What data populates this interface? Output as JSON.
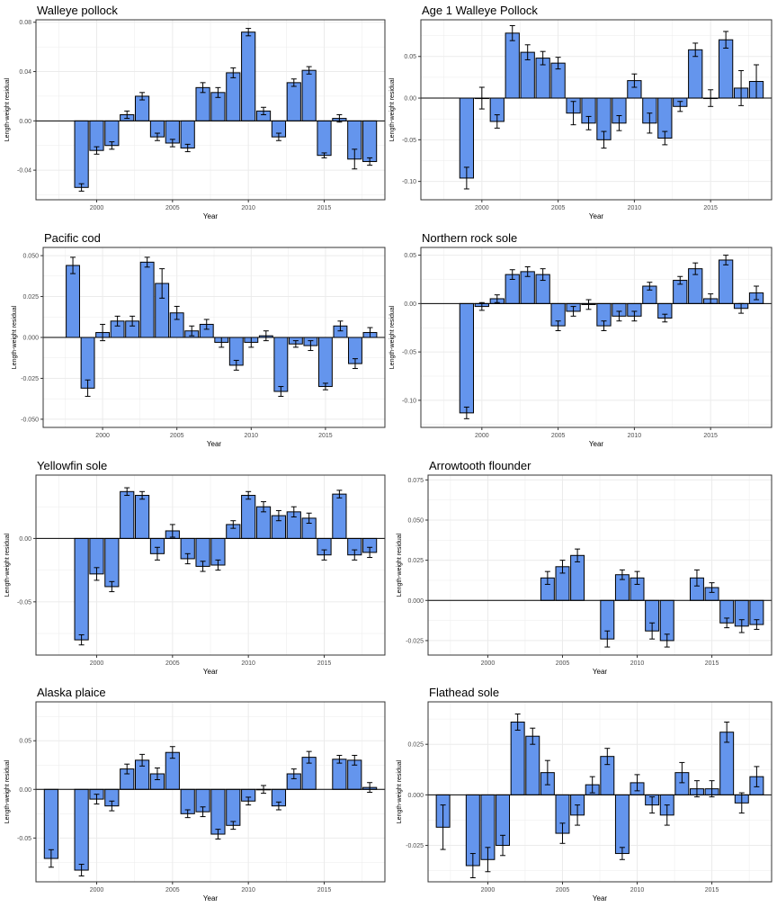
{
  "figure": {
    "ylabel": "Length-weight residual",
    "xlabel": "Year"
  },
  "colors": {
    "bar": "#6495ED",
    "bar_stroke": "#000000",
    "grid": "#EBEBEB",
    "zero_line": "#000000",
    "panel_border": "#333333"
  },
  "chart_data": [
    {
      "type": "bar",
      "title": "Walleye pollock",
      "xlabel": "Year",
      "ylabel": "Length-weight residual",
      "xlim": [
        1996,
        2019
      ],
      "ylim": [
        -0.064,
        0.082
      ],
      "xticks": [
        2000,
        2005,
        2010,
        2015
      ],
      "xtick_labels": [
        "2000",
        "2005",
        "2010",
        "2015"
      ],
      "yticks": [
        -0.04,
        0.0,
        0.04,
        0.08
      ],
      "ytick_labels": [
        "-0.04",
        "0.00",
        "0.04",
        "0.08"
      ],
      "grid": true,
      "x": [
        1999,
        2000,
        2001,
        2002,
        2003,
        2004,
        2005,
        2006,
        2007,
        2008,
        2009,
        2010,
        2011,
        2012,
        2013,
        2014,
        2015,
        2016,
        2017,
        2018
      ],
      "values": [
        -0.054,
        -0.024,
        -0.02,
        0.005,
        0.02,
        -0.013,
        -0.018,
        -0.022,
        0.027,
        0.023,
        0.039,
        0.072,
        0.008,
        -0.013,
        0.031,
        0.041,
        -0.028,
        0.002,
        -0.031,
        -0.033
      ],
      "errors": [
        0.003,
        0.003,
        0.003,
        0.003,
        0.003,
        0.003,
        0.003,
        0.003,
        0.004,
        0.004,
        0.004,
        0.003,
        0.003,
        0.003,
        0.003,
        0.003,
        0.002,
        0.003,
        0.008,
        0.003
      ]
    },
    {
      "type": "bar",
      "title": "Age 1 Walleye Pollock",
      "xlabel": "Year",
      "ylabel": "Length-weight residual",
      "xlim": [
        1996,
        2019
      ],
      "ylim": [
        -0.122,
        0.094
      ],
      "xticks": [
        2000,
        2005,
        2010,
        2015
      ],
      "xtick_labels": [
        "2000",
        "2005",
        "2010",
        "2015"
      ],
      "yticks": [
        -0.1,
        -0.05,
        0.0,
        0.05
      ],
      "ytick_labels": [
        "-0.10",
        "-0.05",
        "0.00",
        "0.05"
      ],
      "grid": true,
      "x": [
        1999,
        2000,
        2001,
        2002,
        2003,
        2004,
        2005,
        2006,
        2007,
        2008,
        2009,
        2010,
        2011,
        2012,
        2013,
        2014,
        2015,
        2016,
        2017,
        2018
      ],
      "values": [
        -0.096,
        0.0,
        -0.028,
        0.078,
        0.055,
        0.048,
        0.042,
        -0.018,
        -0.03,
        -0.05,
        -0.03,
        0.021,
        -0.03,
        -0.048,
        -0.01,
        0.058,
        0.0,
        0.07,
        0.012,
        0.02
      ],
      "errors": [
        0.013,
        0.013,
        0.008,
        0.009,
        0.009,
        0.008,
        0.007,
        0.014,
        0.008,
        0.01,
        0.009,
        0.008,
        0.012,
        0.008,
        0.006,
        0.008,
        0.01,
        0.01,
        0.021,
        0.02
      ]
    },
    {
      "type": "bar",
      "title": "Pacific cod",
      "xlabel": "Year",
      "ylabel": "Length-weight residual",
      "xlim": [
        1996,
        2019
      ],
      "ylim": [
        -0.055,
        0.055
      ],
      "xticks": [
        2000,
        2005,
        2010,
        2015
      ],
      "xtick_labels": [
        "2000",
        "2005",
        "2010",
        "2015"
      ],
      "yticks": [
        -0.05,
        -0.025,
        0.0,
        0.025,
        0.05
      ],
      "ytick_labels": [
        "-0.050",
        "-0.025",
        "0.000",
        "0.025",
        "0.050"
      ],
      "grid": true,
      "x": [
        1998,
        1999,
        2000,
        2001,
        2002,
        2003,
        2004,
        2005,
        2006,
        2007,
        2008,
        2009,
        2010,
        2011,
        2012,
        2013,
        2014,
        2015,
        2016,
        2017,
        2018
      ],
      "values": [
        0.044,
        -0.031,
        0.003,
        0.01,
        0.01,
        0.046,
        0.033,
        0.015,
        0.004,
        0.008,
        -0.003,
        -0.017,
        -0.003,
        0.001,
        -0.033,
        -0.004,
        -0.005,
        -0.03,
        0.007,
        -0.016,
        0.003
      ],
      "errors": [
        0.005,
        0.005,
        0.005,
        0.003,
        0.003,
        0.003,
        0.009,
        0.004,
        0.003,
        0.003,
        0.003,
        0.003,
        0.003,
        0.003,
        0.003,
        0.002,
        0.003,
        0.002,
        0.003,
        0.003,
        0.003
      ]
    },
    {
      "type": "bar",
      "title": "Northern rock sole",
      "xlabel": "Year",
      "ylabel": "Length-weight residual",
      "xlim": [
        1996,
        2019
      ],
      "ylim": [
        -0.128,
        0.058
      ],
      "xticks": [
        2000,
        2005,
        2010,
        2015
      ],
      "xtick_labels": [
        "2000",
        "2005",
        "2010",
        "2015"
      ],
      "yticks": [
        -0.1,
        -0.05,
        0.0,
        0.05
      ],
      "ytick_labels": [
        "-0.10",
        "-0.05",
        "0.00",
        "0.05"
      ],
      "grid": true,
      "x": [
        1999,
        2000,
        2001,
        2002,
        2003,
        2004,
        2005,
        2006,
        2007,
        2008,
        2009,
        2010,
        2011,
        2012,
        2013,
        2014,
        2015,
        2016,
        2017,
        2018
      ],
      "values": [
        -0.113,
        -0.003,
        0.005,
        0.03,
        0.033,
        0.03,
        -0.023,
        -0.008,
        -0.001,
        -0.023,
        -0.013,
        -0.013,
        0.018,
        -0.015,
        0.024,
        0.036,
        0.005,
        0.045,
        -0.005,
        0.011
      ],
      "errors": [
        0.006,
        0.004,
        0.004,
        0.005,
        0.005,
        0.006,
        0.005,
        0.005,
        0.005,
        0.005,
        0.005,
        0.005,
        0.004,
        0.004,
        0.004,
        0.006,
        0.005,
        0.005,
        0.005,
        0.007
      ]
    },
    {
      "type": "bar",
      "title": "Yellowfin sole",
      "xlabel": "Year",
      "ylabel": "Length-weight residual",
      "xlim": [
        1996,
        2019
      ],
      "ylim": [
        -0.092,
        0.05
      ],
      "xticks": [
        2000,
        2005,
        2010,
        2015
      ],
      "xtick_labels": [
        "2000",
        "2005",
        "2010",
        "2015"
      ],
      "yticks": [
        -0.05,
        0.0
      ],
      "ytick_labels": [
        "-0.05",
        "0.00"
      ],
      "grid": true,
      "x": [
        1999,
        2000,
        2001,
        2002,
        2003,
        2004,
        2005,
        2006,
        2007,
        2008,
        2009,
        2010,
        2011,
        2012,
        2013,
        2014,
        2015,
        2016,
        2017,
        2018
      ],
      "values": [
        -0.08,
        -0.028,
        -0.038,
        0.037,
        0.034,
        -0.012,
        0.006,
        -0.016,
        -0.022,
        -0.021,
        0.011,
        0.034,
        0.025,
        0.018,
        0.021,
        0.016,
        -0.013,
        0.035,
        -0.013,
        -0.011
      ],
      "errors": [
        0.004,
        0.005,
        0.004,
        0.003,
        0.003,
        0.005,
        0.005,
        0.004,
        0.004,
        0.004,
        0.003,
        0.003,
        0.004,
        0.004,
        0.004,
        0.004,
        0.004,
        0.003,
        0.004,
        0.004
      ]
    },
    {
      "type": "bar",
      "title": "Arrowtooth flounder",
      "xlabel": "Year",
      "ylabel": "Length-weight residual",
      "xlim": [
        1996,
        2019
      ],
      "ylim": [
        -0.034,
        0.078
      ],
      "xticks": [
        2000,
        2005,
        2010,
        2015
      ],
      "xtick_labels": [
        "2000",
        "2005",
        "2010",
        "2015"
      ],
      "yticks": [
        -0.025,
        0.0,
        0.025,
        0.05,
        0.075
      ],
      "ytick_labels": [
        "-0.025",
        "0.000",
        "0.025",
        "0.050",
        "0.075"
      ],
      "grid": true,
      "x": [
        2004,
        2005,
        2006,
        2008,
        2009,
        2010,
        2011,
        2012,
        2014,
        2015,
        2016,
        2017,
        2018
      ],
      "values": [
        0.014,
        0.021,
        0.028,
        -0.024,
        0.016,
        0.014,
        -0.019,
        -0.025,
        0.014,
        0.008,
        -0.014,
        -0.016,
        -0.015
      ],
      "errors": [
        0.004,
        0.004,
        0.004,
        0.005,
        0.003,
        0.004,
        0.005,
        0.004,
        0.005,
        0.003,
        0.003,
        0.004,
        0.003
      ]
    },
    {
      "type": "bar",
      "title": "Alaska plaice",
      "xlabel": "Year",
      "ylabel": "Length-weight residual",
      "xlim": [
        1996,
        2019
      ],
      "ylim": [
        -0.095,
        0.09
      ],
      "xticks": [
        2000,
        2005,
        2010,
        2015
      ],
      "xtick_labels": [
        "2000",
        "2005",
        "2010",
        "2015"
      ],
      "yticks": [
        -0.05,
        0.0,
        0.05
      ],
      "ytick_labels": [
        "-0.05",
        "0.00",
        "0.05"
      ],
      "grid": true,
      "x": [
        1997,
        1999,
        2000,
        2001,
        2002,
        2003,
        2004,
        2005,
        2006,
        2007,
        2008,
        2009,
        2010,
        2011,
        2012,
        2013,
        2014,
        2016,
        2017,
        2018
      ],
      "values": [
        -0.071,
        -0.083,
        -0.01,
        -0.017,
        0.021,
        0.03,
        0.016,
        0.038,
        -0.025,
        -0.023,
        -0.046,
        -0.037,
        -0.012,
        0.0,
        -0.017,
        0.016,
        0.033,
        0.031,
        0.03,
        0.002
      ],
      "errors": [
        0.009,
        0.006,
        0.005,
        0.005,
        0.005,
        0.006,
        0.006,
        0.006,
        0.004,
        0.005,
        0.005,
        0.004,
        0.004,
        0.004,
        0.004,
        0.005,
        0.006,
        0.004,
        0.005,
        0.005
      ]
    },
    {
      "type": "bar",
      "title": "Flathead sole",
      "xlabel": "Year",
      "ylabel": "Length-weight residual",
      "xlim": [
        1996,
        2019
      ],
      "ylim": [
        -0.043,
        0.046
      ],
      "xticks": [
        2000,
        2005,
        2010,
        2015
      ],
      "xtick_labels": [
        "2000",
        "2005",
        "2010",
        "2015"
      ],
      "yticks": [
        -0.025,
        0.0,
        0.025
      ],
      "ytick_labels": [
        "-0.025",
        "0.000",
        "0.025"
      ],
      "grid": true,
      "x": [
        1997,
        1999,
        2000,
        2001,
        2002,
        2003,
        2004,
        2005,
        2006,
        2007,
        2008,
        2009,
        2010,
        2011,
        2012,
        2013,
        2014,
        2015,
        2016,
        2017,
        2018
      ],
      "values": [
        -0.016,
        -0.035,
        -0.032,
        -0.025,
        0.036,
        0.029,
        0.011,
        -0.019,
        -0.01,
        0.005,
        0.019,
        -0.029,
        0.006,
        -0.005,
        -0.01,
        0.011,
        0.003,
        0.003,
        0.031,
        -0.004,
        0.009
      ],
      "errors": [
        0.011,
        0.006,
        0.006,
        0.005,
        0.004,
        0.004,
        0.006,
        0.005,
        0.005,
        0.004,
        0.004,
        0.003,
        0.004,
        0.004,
        0.005,
        0.005,
        0.004,
        0.004,
        0.005,
        0.005,
        0.005
      ]
    }
  ]
}
